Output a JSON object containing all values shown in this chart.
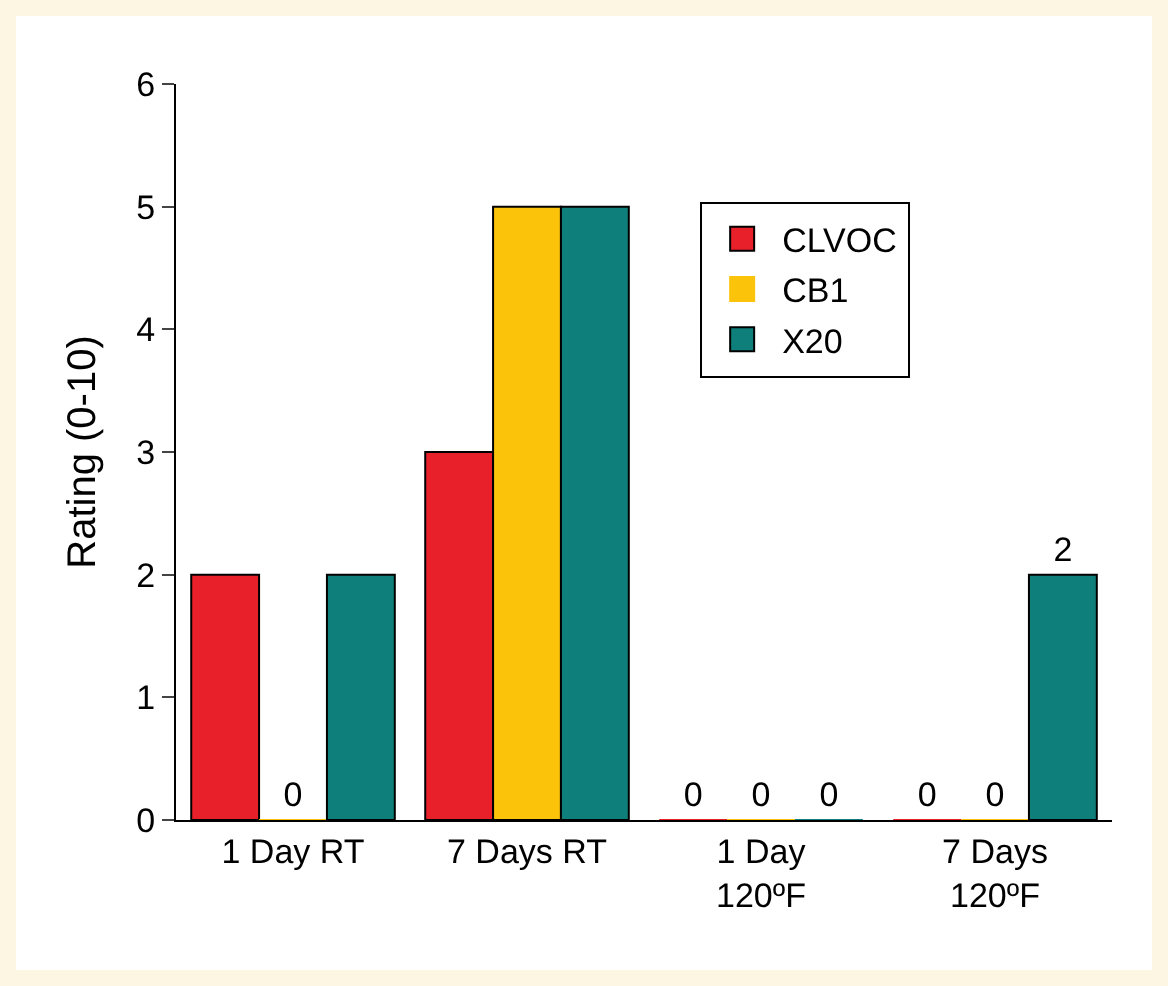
{
  "chart_data": {
    "type": "bar",
    "ylabel": "Rating (0-10)",
    "categories": [
      "1 Day RT",
      "7 Days RT",
      "1 Day\n120ºF",
      "7 Days\n120ºF"
    ],
    "series": [
      {
        "name": "CLVOC",
        "color": "#e8202a",
        "values": [
          2,
          3,
          0,
          0
        ],
        "value_labels": [
          null,
          null,
          "0",
          "0"
        ]
      },
      {
        "name": "CB1",
        "color": "#fcc30b",
        "values": [
          0,
          5,
          0,
          0
        ],
        "value_labels": [
          "0",
          null,
          "0",
          "0"
        ]
      },
      {
        "name": "X20",
        "color": "#0e7f7a",
        "values": [
          2,
          5,
          0,
          2
        ],
        "value_labels": [
          null,
          null,
          "0",
          "2"
        ]
      }
    ],
    "ylim": [
      0,
      6
    ],
    "yticks": [
      0,
      1,
      2,
      3,
      4,
      5,
      6
    ],
    "grid": false,
    "legend": "top right"
  }
}
